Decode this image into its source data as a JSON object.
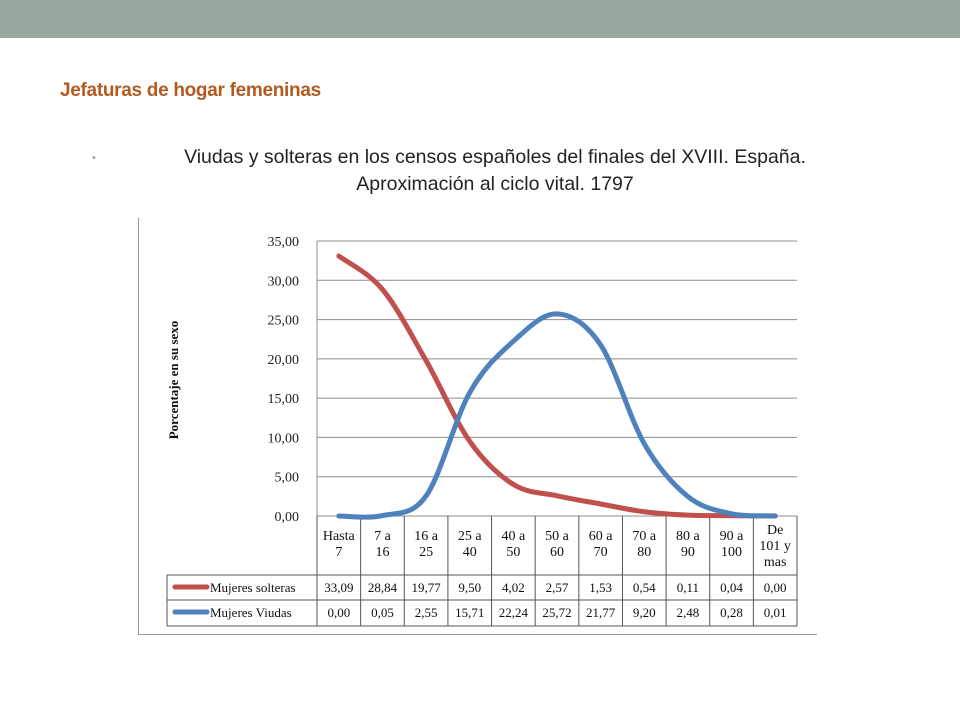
{
  "slide": {
    "title": "Jefaturas de hogar femeninas",
    "bullet_line1": "Viudas y solteras en los censos españoles del finales del XVIII. España.",
    "bullet_line2": "Aproximación al ciclo vital. 1797",
    "bullet_symbol": "•"
  },
  "chart_data": {
    "type": "line",
    "ylabel": "Porcentaje en su sexo",
    "ylim": [
      0,
      35
    ],
    "yticks": [
      "0,00",
      "5,00",
      "10,00",
      "15,00",
      "20,00",
      "25,00",
      "30,00",
      "35,00"
    ],
    "categories": [
      [
        "Hasta",
        "7"
      ],
      [
        "7 a",
        "16"
      ],
      [
        "16 a",
        "25"
      ],
      [
        "25 a",
        "40"
      ],
      [
        "40 a",
        "50"
      ],
      [
        "50 a",
        "60"
      ],
      [
        "60 a",
        "70"
      ],
      [
        "70 a",
        "80"
      ],
      [
        "80 a",
        "90"
      ],
      [
        "90 a",
        "100"
      ],
      [
        "De",
        "101 y",
        "mas"
      ]
    ],
    "series": [
      {
        "name": "Mujeres solteras",
        "color": "#c0504d",
        "values": [
          33.09,
          28.84,
          19.77,
          9.5,
          4.02,
          2.57,
          1.53,
          0.54,
          0.11,
          0.04,
          0.0
        ],
        "labels": [
          "33,09",
          "28,84",
          "19,77",
          "9,50",
          "4,02",
          "2,57",
          "1,53",
          "0,54",
          "0,11",
          "0,04",
          "0,00"
        ]
      },
      {
        "name": "Mujeres Viudas",
        "color": "#4f81bd",
        "values": [
          0.0,
          0.05,
          2.55,
          15.71,
          22.24,
          25.72,
          21.77,
          9.2,
          2.48,
          0.28,
          0.01
        ],
        "labels": [
          "0,00",
          "0,05",
          "2,55",
          "15,71",
          "22,24",
          "25,72",
          "21,77",
          "9,20",
          "2,48",
          "0,28",
          "0,01"
        ]
      }
    ],
    "grid": true
  }
}
